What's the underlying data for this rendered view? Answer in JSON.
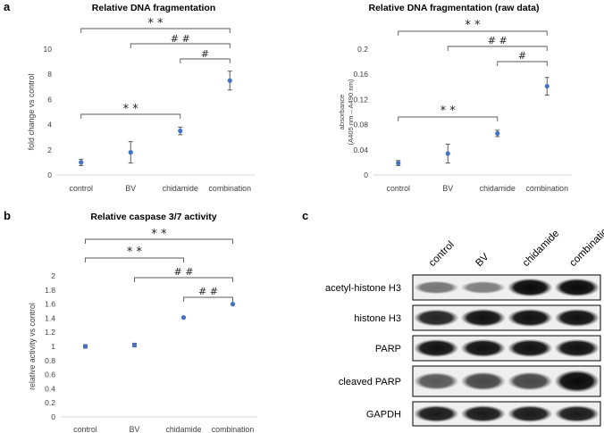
{
  "panel_labels": {
    "a": "a",
    "b": "b",
    "c": "c"
  },
  "chart_data": [
    {
      "type": "scatter",
      "title": "Relative DNA fragmentation",
      "xlabel": "",
      "ylabel": "fold change vs control",
      "categories": [
        "control",
        "BV",
        "chidamide",
        "combination"
      ],
      "values": [
        1.0,
        1.8,
        3.5,
        7.5
      ],
      "errors": [
        0.25,
        0.85,
        0.3,
        0.75
      ],
      "ylim": [
        0,
        10
      ],
      "yticks": [
        "0",
        "2",
        "4",
        "6",
        "8",
        "10"
      ],
      "color": "#4472C4",
      "brackets": [
        {
          "from": 0,
          "to": 3,
          "label": "* *"
        },
        {
          "from": 1,
          "to": 3,
          "label": "# #"
        },
        {
          "from": 2,
          "to": 3,
          "label": "#"
        },
        {
          "from": 0,
          "to": 2,
          "label": "* *"
        }
      ]
    },
    {
      "type": "scatter",
      "title": "Relative DNA fragmentation (raw data)",
      "xlabel": "",
      "ylabel": "absorbance",
      "ylabel2": "(A405 nm – A490 nm)",
      "categories": [
        "control",
        "BV",
        "chidamide",
        "combination"
      ],
      "values": [
        0.019,
        0.034,
        0.066,
        0.141
      ],
      "errors": [
        0.004,
        0.015,
        0.005,
        0.014
      ],
      "ylim": [
        0,
        0.2
      ],
      "yticks": [
        "0",
        "0.04",
        "0.08",
        "0.12",
        "0.16",
        "0.2"
      ],
      "color": "#4472C4",
      "brackets": [
        {
          "from": 0,
          "to": 3,
          "label": "* *"
        },
        {
          "from": 1,
          "to": 3,
          "label": "# #"
        },
        {
          "from": 2,
          "to": 3,
          "label": "#"
        },
        {
          "from": 0,
          "to": 2,
          "label": "* *"
        }
      ]
    },
    {
      "type": "scatter",
      "title": "Relative caspase 3/7 activity",
      "xlabel": "",
      "ylabel": "relative activity vs control",
      "categories": [
        "control",
        "BV",
        "chidamide",
        "combination"
      ],
      "values": [
        1.0,
        1.02,
        1.41,
        1.6
      ],
      "errors": [
        0.025,
        0.025,
        0.008,
        0.008
      ],
      "ylim": [
        0,
        2
      ],
      "yticks": [
        "0",
        "0.2",
        "0.4",
        "0.6",
        "0.8",
        "1",
        "1.2",
        "1.4",
        "1.6",
        "1.8",
        "2"
      ],
      "color": "#4472C4",
      "brackets": [
        {
          "from": 0,
          "to": 3,
          "label": "* *"
        },
        {
          "from": 0,
          "to": 2,
          "label": "* *"
        },
        {
          "from": 1,
          "to": 3,
          "label": "# #"
        },
        {
          "from": 2,
          "to": 3,
          "label": "# #"
        }
      ]
    }
  ],
  "western_blot": {
    "lanes": [
      "control",
      "BV",
      "chidamide",
      "combination"
    ],
    "proteins": [
      {
        "name": "acetyl-histone H3",
        "intensity": [
          0.35,
          0.3,
          0.95,
          0.95
        ]
      },
      {
        "name": "histone H3",
        "intensity": [
          0.8,
          0.9,
          0.9,
          0.9
        ]
      },
      {
        "name": "PARP",
        "intensity": [
          0.9,
          0.9,
          0.9,
          0.9
        ]
      },
      {
        "name": "cleaved PARP",
        "intensity": [
          0.5,
          0.6,
          0.6,
          0.95
        ]
      },
      {
        "name": "GAPDH",
        "intensity": [
          0.85,
          0.85,
          0.85,
          0.85
        ]
      }
    ]
  }
}
